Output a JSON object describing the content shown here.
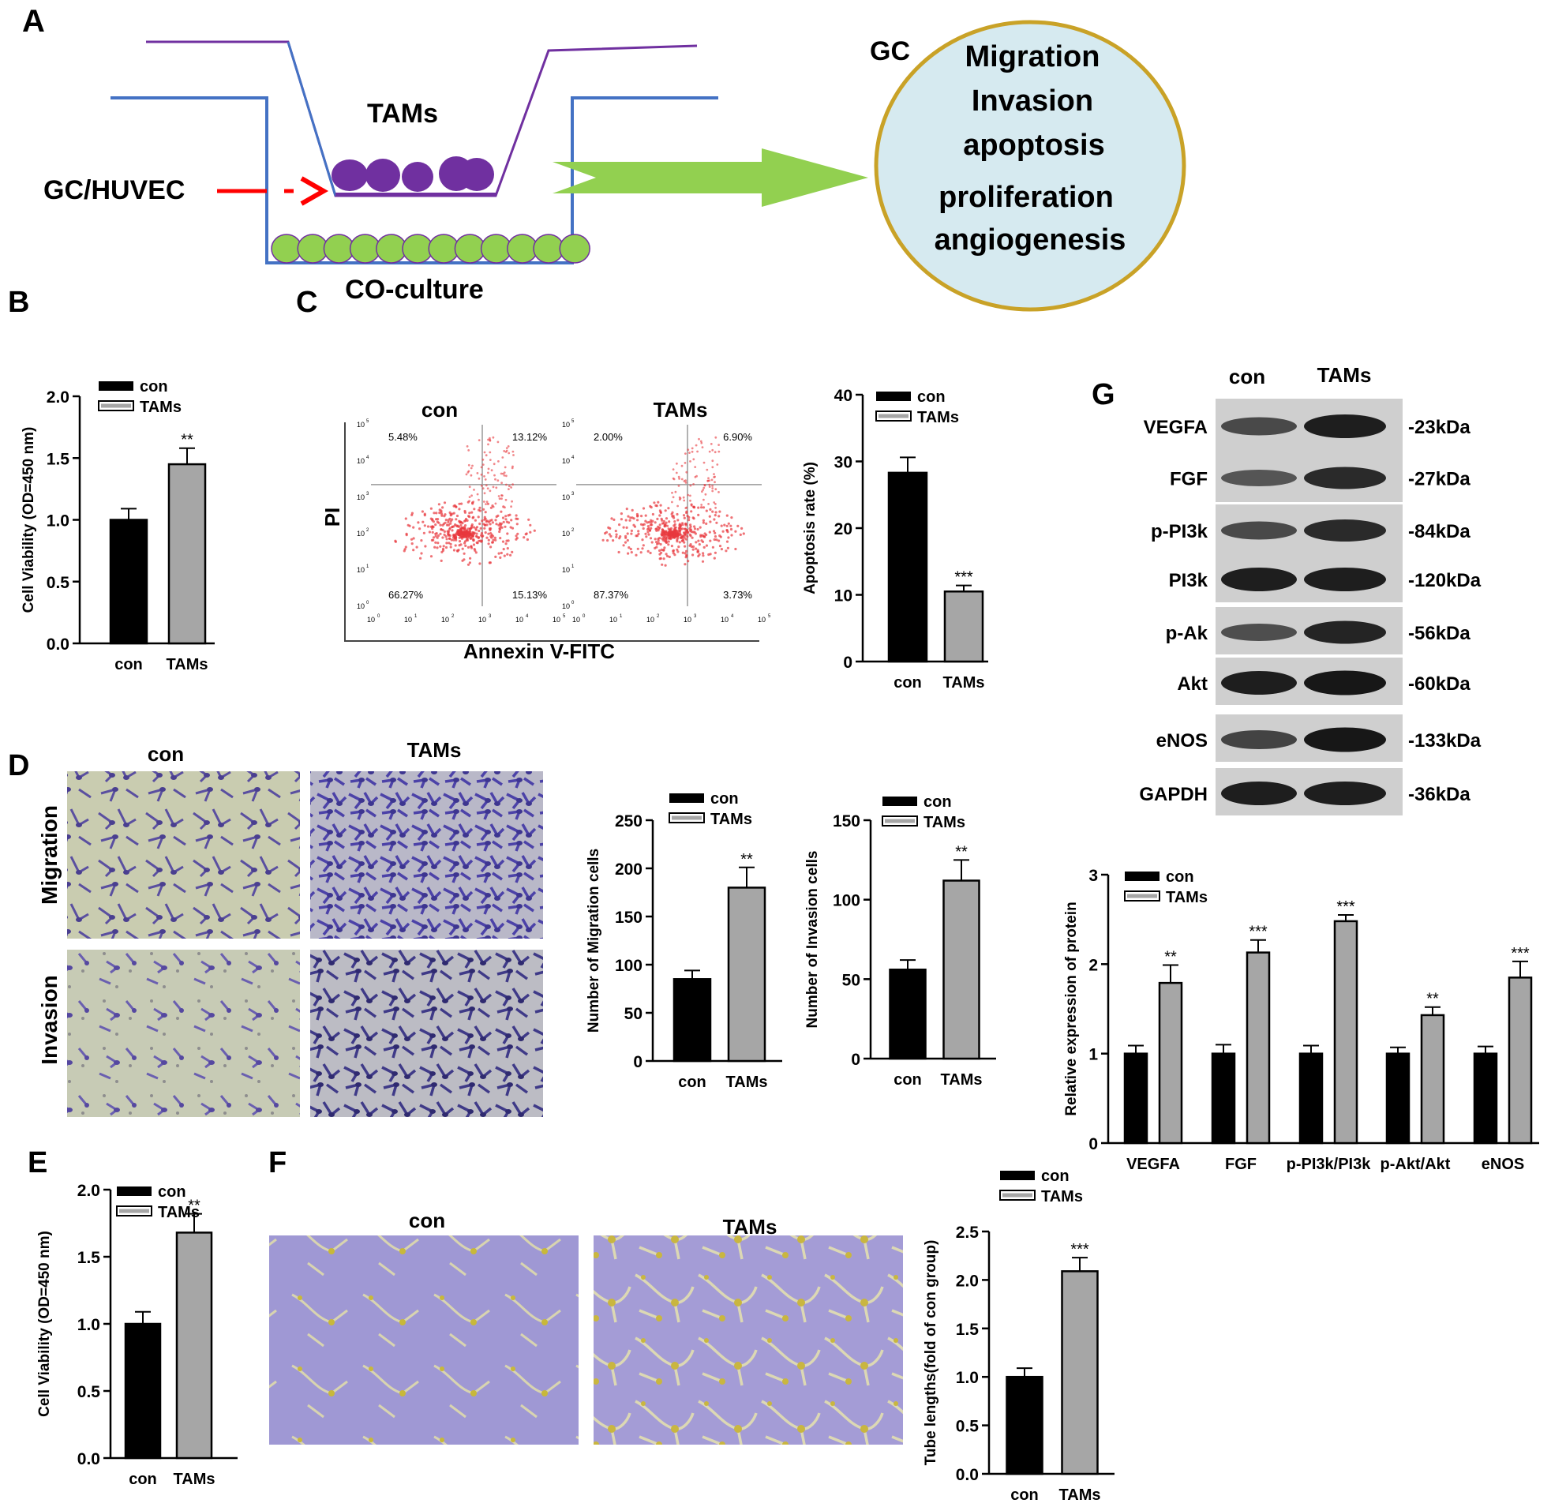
{
  "panel_letters": {
    "a": "A",
    "b": "B",
    "c": "C",
    "d": "D",
    "e": "E",
    "f": "F",
    "g": "G"
  },
  "schematic": {
    "tams_label": "TAMs",
    "source_label": "GC/HUVEC",
    "coculture_label": "CO-culture",
    "circle_label": "GC",
    "outcomes": [
      "Migration",
      "Invasion",
      "apoptosis",
      "proliferation",
      "angiogenesis"
    ],
    "colors": {
      "well": "#4472C4",
      "insert": "#7030A0",
      "tam_cells": "#7030A0",
      "bottom_cells": "#92D050",
      "arrow": "#92D050",
      "circle_fill": "#D6EAF0",
      "circle_edge": "#C9A227",
      "red_arrow": "#FF0000"
    }
  },
  "legend": {
    "con": "con",
    "tams": "TAMs"
  },
  "colors": {
    "con": "#000000",
    "tams": "#A6A6A6"
  },
  "flow": {
    "col_titles": [
      "con",
      "TAMs"
    ],
    "quadrants": [
      {
        "ul": "5.48%",
        "ur": "13.12%",
        "ll": "66.27%",
        "lr": "15.13%"
      },
      {
        "ul": "2.00%",
        "ur": "6.90%",
        "ll": "87.37%",
        "lr": "3.73%"
      }
    ],
    "x_axis_label": "Annexin V-FITC",
    "y_axis_label": "PI",
    "tick_label_base": "10",
    "tick_exponents": [
      "0",
      "1",
      "2",
      "3",
      "4",
      "5"
    ]
  },
  "transwell": {
    "col_titles": [
      "con",
      "TAMs"
    ],
    "row_titles": [
      "Migration",
      "Invasion"
    ]
  },
  "tube": {
    "col_titles": [
      "con",
      "TAMs"
    ]
  },
  "western": {
    "col_titles": [
      "con",
      "TAMs"
    ],
    "proteins": [
      "VEGFA",
      "FGF",
      "p-PI3k",
      "PI3k",
      "p-Ak",
      "Akt",
      "eNOS",
      "GAPDH"
    ],
    "sizes": [
      "-23kDa",
      "-27kDa",
      "-84kDa",
      "-120kDa",
      "-56kDa",
      "-60kDa",
      "-133kDa",
      "-36kDa"
    ],
    "band_intensity": {
      "con": [
        0.55,
        0.45,
        0.55,
        0.9,
        0.5,
        0.9,
        0.6,
        0.9
      ],
      "tams": [
        0.9,
        0.8,
        0.8,
        0.9,
        0.85,
        0.95,
        0.95,
        0.9
      ]
    }
  },
  "chart_data": [
    {
      "id": "B",
      "type": "bar",
      "categories": [
        "con",
        "TAMs"
      ],
      "values": [
        1.0,
        1.45
      ],
      "errors": [
        0.09,
        0.13
      ],
      "ylabel": "Cell Viability (OD=450 nm)",
      "ylim": [
        0,
        2.0
      ],
      "yticks": [
        "0.0",
        "0.5",
        "1.0",
        "1.5",
        "2.0"
      ],
      "annotations": [
        "",
        "**"
      ],
      "legend": "top-left"
    },
    {
      "id": "C",
      "type": "bar",
      "categories": [
        "con",
        "TAMs"
      ],
      "values": [
        28.3,
        10.5
      ],
      "errors": [
        2.3,
        0.9
      ],
      "ylabel": "Apoptosis rate (%)",
      "ylim": [
        0,
        40
      ],
      "yticks": [
        "0",
        "10",
        "20",
        "30",
        "40"
      ],
      "annotations": [
        "",
        "***"
      ],
      "legend": "top-left"
    },
    {
      "id": "D-migration",
      "type": "bar",
      "categories": [
        "con",
        "TAMs"
      ],
      "values": [
        85,
        180
      ],
      "errors": [
        9,
        21
      ],
      "ylabel": "Number of Migration cells",
      "ylim": [
        0,
        250
      ],
      "yticks": [
        "0",
        "50",
        "100",
        "150",
        "200",
        "250"
      ],
      "annotations": [
        "",
        "**"
      ],
      "legend": "top-left"
    },
    {
      "id": "D-invasion",
      "type": "bar",
      "categories": [
        "con",
        "TAMs"
      ],
      "values": [
        56,
        112
      ],
      "errors": [
        6,
        13
      ],
      "ylabel": "Number of Invasion cells",
      "ylim": [
        0,
        150
      ],
      "yticks": [
        "0",
        "50",
        "100",
        "150"
      ],
      "annotations": [
        "",
        "**"
      ],
      "legend": "top-left"
    },
    {
      "id": "E",
      "type": "bar",
      "categories": [
        "con",
        "TAMs"
      ],
      "values": [
        1.0,
        1.68
      ],
      "errors": [
        0.09,
        0.14
      ],
      "ylabel": "Cell Viability (OD=450 nm)",
      "ylim": [
        0,
        2.0
      ],
      "yticks": [
        "0.0",
        "0.5",
        "1.0",
        "1.5",
        "2.0"
      ],
      "annotations": [
        "",
        "**"
      ],
      "legend": "top-left"
    },
    {
      "id": "F",
      "type": "bar",
      "categories": [
        "con",
        "TAMs"
      ],
      "values": [
        1.0,
        2.09
      ],
      "errors": [
        0.09,
        0.14
      ],
      "ylabel": "Tube lengths(fold of con group)",
      "ylim": [
        0,
        2.5
      ],
      "yticks": [
        "0.0",
        "0.5",
        "1.0",
        "1.5",
        "2.0",
        "2.5"
      ],
      "annotations": [
        "",
        "***"
      ],
      "legend": "top-left"
    },
    {
      "id": "G",
      "type": "bar",
      "categories": [
        "VEGFA",
        "FGF",
        "p-PI3k/PI3k",
        "p-Akt/Akt",
        "eNOS"
      ],
      "series": [
        {
          "name": "con",
          "values": [
            1.0,
            1.0,
            1.0,
            1.0,
            1.0
          ],
          "errors": [
            0.09,
            0.1,
            0.09,
            0.07,
            0.08
          ]
        },
        {
          "name": "TAMs",
          "values": [
            1.79,
            2.13,
            2.48,
            1.43,
            1.85
          ],
          "errors": [
            0.2,
            0.14,
            0.07,
            0.09,
            0.18
          ]
        }
      ],
      "ylabel": "Relative expression of protein",
      "ylim": [
        0,
        3
      ],
      "yticks": [
        "0",
        "1",
        "2",
        "3"
      ],
      "annotations": [
        "**",
        "***",
        "***",
        "**",
        "***"
      ],
      "legend": "top-left"
    }
  ]
}
